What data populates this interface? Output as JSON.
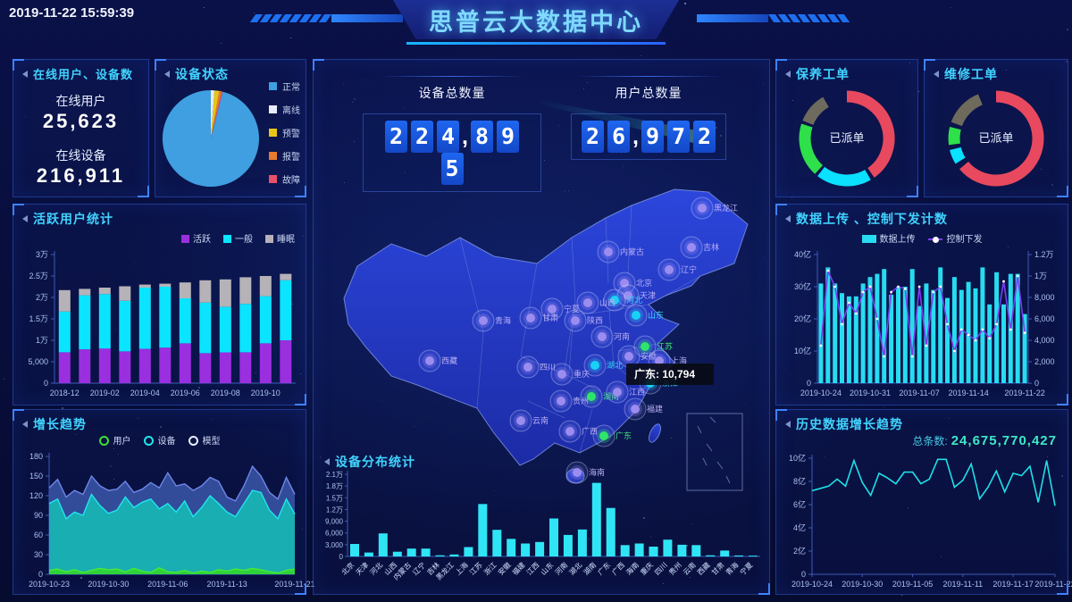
{
  "header": {
    "timestamp": "2019-11-22 15:59:39",
    "title": "思普云大数据中心"
  },
  "colors": {
    "accent_cyan": "#41d3ff",
    "bar_cyan": "#22dff5",
    "bar_purple": "#9a2fe0",
    "bar_gray": "#b5b2b8",
    "line_violet": "#7b3df0",
    "green": "#2ee04a",
    "red": "#e8495f",
    "donut_gray": "#6e6a5c",
    "area_blue": "#36509f",
    "area_teal": "#17b3b3",
    "area_green": "#2fd435"
  },
  "panels": {
    "online": {
      "title": "在线用户、设备数",
      "items": [
        {
          "label": "在线用户",
          "value": "25,623"
        },
        {
          "label": "在线设备",
          "value": "216,911"
        }
      ]
    },
    "device_status": {
      "title": "设备状态",
      "chart_data": {
        "type": "pie",
        "labels": [
          "正常",
          "离线",
          "预警",
          "报警",
          "故障"
        ],
        "values": [
          96.0,
          1.2,
          1.6,
          0.8,
          0.4
        ],
        "colors": [
          "#3f9fe0",
          "#e6ecf8",
          "#e8c619",
          "#e87c2e",
          "#e8506a"
        ],
        "slice_order": [
          1,
          2,
          3,
          4,
          0
        ],
        "legend_position": "right"
      }
    },
    "active_users": {
      "title": "活跃用户统计",
      "chart_data": {
        "type": "bar",
        "stacked": true,
        "categories": [
          "2018-12",
          "2019-01",
          "2019-02",
          "2019-03",
          "2019-04",
          "2019-05",
          "2019-06",
          "2019-07",
          "2019-08",
          "2019-09",
          "2019-10",
          "2019-11"
        ],
        "x_tick_indices": [
          0,
          2,
          4,
          6,
          8,
          10
        ],
        "x_tick_labels": [
          "2018-12",
          "2019-02",
          "2019-04",
          "2019-06",
          "2019-08",
          "2019-10"
        ],
        "unit": "万",
        "ylim": [
          0,
          3
        ],
        "y_ticks": [
          "0",
          "5,000",
          "1万",
          "1.5万",
          "2万",
          "2.5万",
          "3万"
        ],
        "series": [
          {
            "name": "活跃",
            "color": "#9a2fe0",
            "values": [
              0.72,
              0.79,
              0.81,
              0.74,
              0.8,
              0.83,
              0.93,
              0.7,
              0.72,
              0.72,
              0.93,
              1.0
            ]
          },
          {
            "name": "一般",
            "color": "#0ae4ff",
            "values": [
              0.95,
              1.26,
              1.27,
              1.18,
              1.43,
              1.42,
              1.05,
              1.18,
              1.06,
              1.13,
              1.1,
              1.4
            ]
          },
          {
            "name": "睡眠",
            "color": "#b5b2b8",
            "values": [
              0.5,
              0.15,
              0.15,
              0.34,
              0.07,
              0.07,
              0.37,
              0.52,
              0.64,
              0.62,
              0.47,
              0.15
            ]
          }
        ]
      }
    },
    "growth": {
      "title": "增长趋势",
      "chart_data": {
        "type": "area",
        "x_tick_indices": [
          0,
          7,
          14,
          21,
          29
        ],
        "x_tick_labels": [
          "2019-10-23",
          "2019-10-30",
          "2019-11-06",
          "2019-11-13",
          "2019-11-21"
        ],
        "ylim": [
          0,
          180
        ],
        "y_ticks": [
          "0",
          "30",
          "60",
          "90",
          "120",
          "150",
          "180"
        ],
        "series": [
          {
            "name": "模型",
            "line": "#6f86e8",
            "fill": "#36509f",
            "legend_dot": "#e9edff",
            "values": [
              132,
              145,
              118,
              128,
              122,
              150,
              135,
              128,
              130,
              142,
              125,
              130,
              140,
              132,
              155,
              135,
              138,
              128,
              135,
              148,
              142,
              118,
              112,
              135,
              165,
              150,
              125,
              115,
              148,
              122
            ]
          },
          {
            "name": "设备",
            "line": "#22e4f0",
            "fill": "#17b3b3",
            "legend_dot": "#22e4f0",
            "values": [
              108,
              115,
              85,
              95,
              90,
              122,
              105,
              93,
              98,
              118,
              102,
              110,
              115,
              100,
              108,
              95,
              112,
              88,
              102,
              120,
              108,
              95,
              88,
              108,
              128,
              125,
              98,
              85,
              115,
              92
            ]
          },
          {
            "name": "用户",
            "line": "#49e838",
            "fill": "#2fd435",
            "legend_dot": "#3ae03a",
            "values": [
              6,
              8,
              4,
              7,
              3,
              6,
              9,
              7,
              8,
              4,
              9,
              5,
              3,
              10,
              4,
              3,
              6,
              2,
              5,
              3,
              7,
              5,
              8,
              6,
              9,
              7,
              4,
              2,
              6,
              8
            ]
          }
        ],
        "legend_order": [
          "用户",
          "设备",
          "模型"
        ]
      }
    },
    "center": {
      "device_total": {
        "label": "设备总数量",
        "value": "224,895"
      },
      "user_total": {
        "label": "用户总数量",
        "value": "26,972"
      },
      "map": {
        "tooltip": "广东: 10,794",
        "marker_colors": {
          "normal": "#9b8cf0",
          "active": "#18d2f5",
          "hot": "#2ee56a"
        },
        "label_colors": {
          "normal": "#b9aef5",
          "active": "#35d8f8",
          "hot": "#3fe87a"
        },
        "markers": [
          {
            "name": "黑龙江",
            "x": 435,
            "y": 66,
            "type": "normal"
          },
          {
            "name": "吉林",
            "x": 423,
            "y": 110,
            "type": "normal"
          },
          {
            "name": "辽宁",
            "x": 398,
            "y": 135,
            "type": "normal"
          },
          {
            "name": "内蒙古",
            "x": 330,
            "y": 115,
            "type": "normal"
          },
          {
            "name": "北京",
            "x": 348,
            "y": 150,
            "type": "normal"
          },
          {
            "name": "天津",
            "x": 352,
            "y": 164,
            "type": "normal"
          },
          {
            "name": "河北",
            "x": 337,
            "y": 169,
            "type": "active"
          },
          {
            "name": "山西",
            "x": 307,
            "y": 172,
            "type": "normal"
          },
          {
            "name": "山东",
            "x": 361,
            "y": 186,
            "type": "active"
          },
          {
            "name": "陕西",
            "x": 293,
            "y": 192,
            "type": "normal"
          },
          {
            "name": "宁夏",
            "x": 267,
            "y": 179,
            "type": "normal"
          },
          {
            "name": "甘肃",
            "x": 243,
            "y": 189,
            "type": "normal"
          },
          {
            "name": "青海",
            "x": 190,
            "y": 192,
            "type": "normal"
          },
          {
            "name": "西藏",
            "x": 130,
            "y": 237,
            "type": "normal"
          },
          {
            "name": "四川",
            "x": 240,
            "y": 244,
            "type": "normal"
          },
          {
            "name": "重庆",
            "x": 278,
            "y": 252,
            "type": "normal"
          },
          {
            "name": "河南",
            "x": 323,
            "y": 210,
            "type": "normal"
          },
          {
            "name": "安徽",
            "x": 353,
            "y": 232,
            "type": "normal"
          },
          {
            "name": "江苏",
            "x": 371,
            "y": 221,
            "type": "hot"
          },
          {
            "name": "上海",
            "x": 387,
            "y": 237,
            "type": "normal"
          },
          {
            "name": "湖北",
            "x": 315,
            "y": 242,
            "type": "active"
          },
          {
            "name": "浙江",
            "x": 377,
            "y": 262,
            "type": "active"
          },
          {
            "name": "湖南",
            "x": 311,
            "y": 277,
            "type": "hot"
          },
          {
            "name": "江西",
            "x": 340,
            "y": 272,
            "type": "normal"
          },
          {
            "name": "福建",
            "x": 360,
            "y": 291,
            "type": "normal"
          },
          {
            "name": "贵州",
            "x": 277,
            "y": 282,
            "type": "normal"
          },
          {
            "name": "云南",
            "x": 232,
            "y": 304,
            "type": "normal"
          },
          {
            "name": "广西",
            "x": 287,
            "y": 316,
            "type": "normal"
          },
          {
            "name": "广东",
            "x": 325,
            "y": 321,
            "type": "hot"
          },
          {
            "name": "海南",
            "x": 295,
            "y": 362,
            "type": "normal"
          }
        ]
      }
    },
    "device_dist": {
      "title": "设备分布统计",
      "chart_data": {
        "type": "bar",
        "categories": [
          "北京",
          "天津",
          "河北",
          "山西",
          "内蒙古",
          "辽宁",
          "吉林",
          "黑龙江",
          "上海",
          "江苏",
          "浙江",
          "安徽",
          "福建",
          "江西",
          "山东",
          "河南",
          "湖北",
          "湖南",
          "广东",
          "广西",
          "海南",
          "重庆",
          "四川",
          "贵州",
          "云南",
          "西藏",
          "甘肃",
          "青海",
          "宁夏"
        ],
        "values": [
          3200,
          1000,
          5900,
          1200,
          2000,
          2000,
          300,
          500,
          2400,
          13400,
          6800,
          4500,
          3300,
          3700,
          9700,
          5500,
          6900,
          18800,
          12400,
          2900,
          3300,
          2500,
          4300,
          3000,
          2900,
          300,
          1500,
          250,
          200
        ],
        "ylim": [
          0,
          21000
        ],
        "y_ticks": [
          "0",
          "3,000",
          "6,000",
          "9,000",
          "1.2万",
          "1.5万",
          "1.8万",
          "2.1万"
        ],
        "bar_color": "#2fe5f5"
      }
    },
    "maintenance": {
      "title": "保养工单",
      "center_label": "已派单",
      "chart_data": {
        "type": "pie",
        "style": "donut",
        "segments": [
          {
            "color": "#e8495f",
            "from": 0,
            "to": 145
          },
          {
            "color": "#0ae0ff",
            "from": 150,
            "to": 218
          },
          {
            "color": "#2ee04a",
            "from": 222,
            "to": 288
          },
          {
            "color": "#6e6a5c",
            "from": 292,
            "to": 330
          }
        ]
      }
    },
    "repair": {
      "title": "维修工单",
      "center_label": "已派单",
      "chart_data": {
        "type": "pie",
        "style": "donut",
        "segments": [
          {
            "color": "#e8495f",
            "from": 0,
            "to": 230
          },
          {
            "color": "#0ae0ff",
            "from": 238,
            "to": 256
          },
          {
            "color": "#2ee04a",
            "from": 262,
            "to": 284
          },
          {
            "color": "#6e6a5c",
            "from": 290,
            "to": 338
          }
        ]
      }
    },
    "upload": {
      "title": "数据上传 、控制下发计数",
      "chart_data": {
        "type": "bar",
        "x_tick_indices": [
          0,
          7,
          14,
          21,
          29
        ],
        "x_tick_labels": [
          "2019-10-24",
          "2019-10-31",
          "2019-11-07",
          "2019-11-14",
          "2019-11-22"
        ],
        "left_ylim": [
          0,
          40
        ],
        "left_unit": "亿",
        "left_ticks": [
          "0",
          "10亿",
          "20亿",
          "30亿",
          "40亿"
        ],
        "right_ylim": [
          0,
          1.2
        ],
        "right_unit": "万",
        "right_ticks": [
          "0",
          "2,000",
          "4,000",
          "6,000",
          "8,000",
          "1万",
          "1.2万"
        ],
        "series": [
          {
            "name": "数据上传",
            "kind": "bar",
            "color": "#27dcf0",
            "values": [
              31,
              36,
              31,
              28,
              27,
              27,
              31,
              33,
              34,
              35.5,
              27.5,
              30,
              30,
              35.5,
              24,
              31,
              29,
              36,
              26.5,
              33,
              29,
              31.5,
              29.5,
              36,
              24.5,
              34.5,
              24.5,
              34,
              34,
              21.5
            ]
          },
          {
            "name": "控制下发",
            "kind": "line",
            "color": "#7b3df0",
            "values": [
              0.35,
              1.05,
              0.9,
              0.55,
              0.75,
              0.65,
              0.85,
              0.9,
              0.6,
              0.25,
              0.85,
              0.9,
              0.88,
              0.25,
              0.9,
              0.35,
              0.85,
              0.9,
              0.55,
              0.3,
              0.5,
              0.45,
              0.4,
              0.5,
              0.42,
              0.55,
              0.95,
              0.5,
              1.0,
              0.47
            ]
          }
        ]
      }
    },
    "history": {
      "title": "历史数据增长趋势",
      "total_label": "总条数:",
      "total_value": "24,675,770,427",
      "chart_data": {
        "type": "line",
        "x_tick_indices": [
          0,
          6,
          12,
          18,
          24,
          29
        ],
        "x_tick_labels": [
          "2019-10-24",
          "2019-10-30",
          "2019-11-05",
          "2019-11-11",
          "2019-11-17",
          "2019-11-22"
        ],
        "ylim": [
          0,
          10
        ],
        "unit": "亿",
        "y_ticks": [
          "0",
          "2亿",
          "4亿",
          "6亿",
          "8亿",
          "10亿"
        ],
        "line_color": "#1fe0e8",
        "values": [
          7.2,
          7.4,
          7.6,
          8.2,
          7.6,
          9.8,
          7.9,
          6.8,
          8.7,
          8.3,
          7.8,
          8.8,
          8.8,
          7.8,
          8.2,
          9.9,
          9.9,
          7.5,
          8.1,
          9.5,
          6.5,
          7.5,
          8.9,
          7.1,
          8.7,
          8.5,
          9.3,
          6.2,
          9.8,
          5.9
        ]
      }
    }
  }
}
